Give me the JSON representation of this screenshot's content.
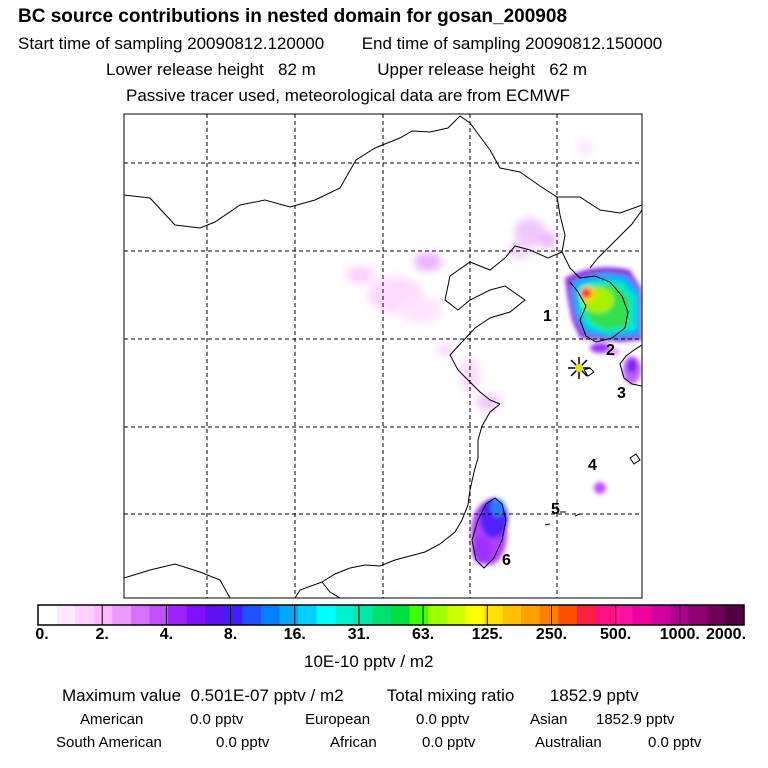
{
  "header": {
    "title": "BC  source contributions in nested domain for gosan_200908",
    "start_label": "Start time of sampling 20090812.120000",
    "end_label": "End time of sampling 20090812.150000",
    "lower_label": "Lower release height",
    "lower_value": "82 m",
    "upper_label": "Upper release height",
    "upper_value": "62 m",
    "tracer_note": "Passive tracer used, meteorological data are from ECMWF"
  },
  "map": {
    "region_labels": [
      "1",
      "2",
      "3",
      "4",
      "5",
      "6"
    ],
    "receptor": "gosan"
  },
  "colorbar": {
    "colors": [
      "#ffffff",
      "#ffe8ff",
      "#ffd0ff",
      "#ffb8ff",
      "#ee99ff",
      "#d870ff",
      "#c050ff",
      "#a020ff",
      "#8010ff",
      "#6010f0",
      "#4020ff",
      "#2050ff",
      "#0080ff",
      "#00a8ff",
      "#00d0ff",
      "#00ffff",
      "#00f0d0",
      "#00e8a8",
      "#00e070",
      "#00e040",
      "#40ff00",
      "#a0ff00",
      "#d0ff00",
      "#ffff00",
      "#ffe000",
      "#ffc000",
      "#ffa000",
      "#ff8000",
      "#ff5000",
      "#ff2040",
      "#ff1080",
      "#ff10a0",
      "#f000a0",
      "#d000a0",
      "#b00090",
      "#900070",
      "#700058",
      "#500040"
    ],
    "ticks": [
      "0.",
      "2.",
      "4.",
      "8.",
      "16.",
      "31.",
      "63.",
      "125.",
      "250.",
      "500.",
      "1000.",
      "2000."
    ],
    "unit": "10E-10 pptv / m2"
  },
  "summary": {
    "max_label": "Maximum value",
    "max_value": "0.501E-07 pptv / m2",
    "total_label": "Total mixing ratio",
    "total_value": "1852.9 pptv",
    "regions": [
      {
        "name": "American",
        "value": "0.0 pptv"
      },
      {
        "name": "European",
        "value": "0.0 pptv"
      },
      {
        "name": "Asian",
        "value": "1852.9 pptv"
      },
      {
        "name": "South American",
        "value": "0.0 pptv"
      },
      {
        "name": "African",
        "value": "0.0 pptv"
      },
      {
        "name": "Australian",
        "value": "0.0 pptv"
      }
    ]
  }
}
